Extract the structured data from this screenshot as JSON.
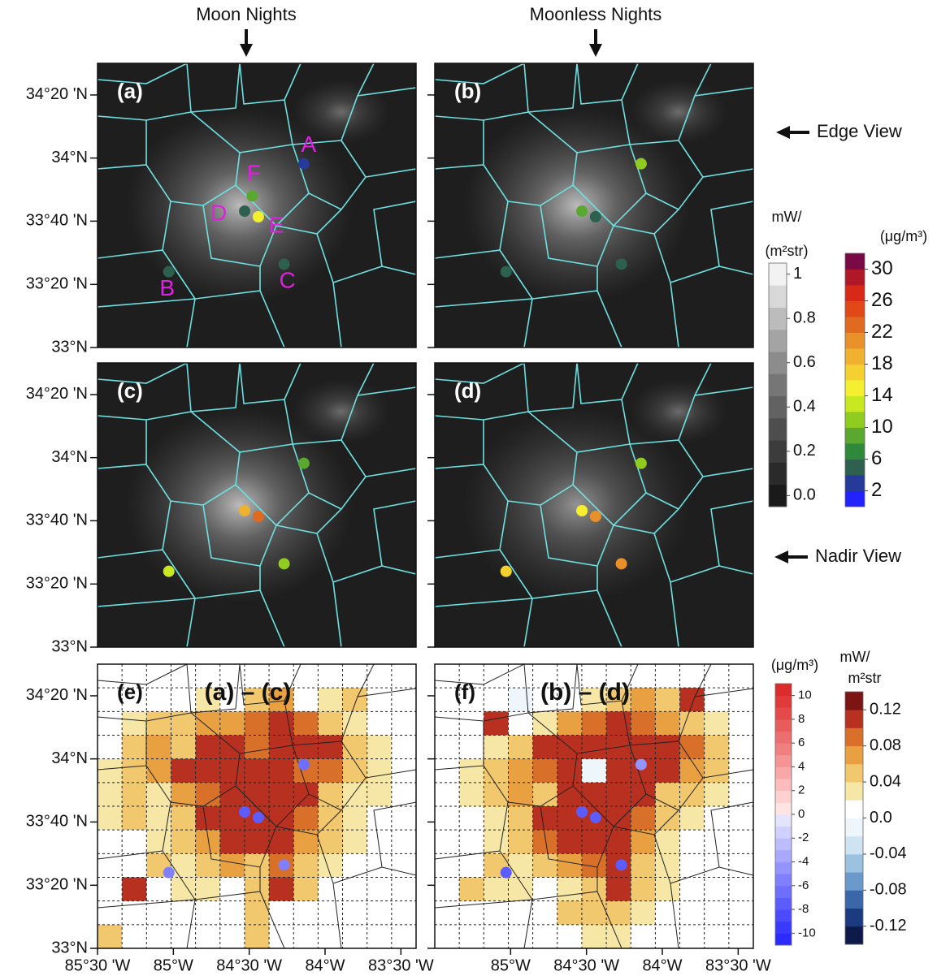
{
  "column_titles": [
    "Moon Nights",
    "Moonless Nights"
  ],
  "view_labels": [
    "Edge View",
    "Nadir View"
  ],
  "xlim": [
    -85.5,
    -83.4
  ],
  "ylim": [
    33,
    34.5
  ],
  "yticks": [
    {
      "value": 33,
      "label": "33°N"
    },
    {
      "value": 33.333,
      "label": "33°20 'N"
    },
    {
      "value": 33.667,
      "label": "33°40 'N"
    },
    {
      "value": 34,
      "label": "34°N"
    },
    {
      "value": 34.333,
      "label": "34°20 'N"
    }
  ],
  "stations": {
    "names": [
      "A",
      "B",
      "C",
      "D",
      "E",
      "F"
    ],
    "lon": [
      -84.14,
      -85.03,
      -84.27,
      -84.53,
      -84.44,
      -84.48
    ],
    "lat": [
      33.97,
      33.4,
      33.44,
      33.72,
      33.69,
      33.8
    ]
  },
  "panels": [
    {
      "label": "(a)",
      "show_names": true,
      "values": [
        3,
        5,
        5,
        5,
        14,
        9
      ]
    },
    {
      "label": "(b)",
      "values": [
        11,
        5,
        5,
        9,
        5,
        null
      ]
    },
    {
      "label": "(c)",
      "values": [
        9,
        12,
        11,
        19,
        22,
        null
      ]
    },
    {
      "label": "(d)",
      "values": [
        11,
        17,
        21,
        15,
        20,
        null
      ]
    },
    {
      "label": "(e)",
      "subtitle": "(a) – (c)",
      "values": [
        -7,
        -6,
        -6,
        -8,
        -8,
        null
      ],
      "xticks": [
        {
          "value": -85.5,
          "label": "85°30 'W"
        },
        {
          "value": -85,
          "label": "85°W"
        },
        {
          "value": -84.5,
          "label": "84°30 'W"
        },
        {
          "value": -84,
          "label": "84°W"
        },
        {
          "value": -83.5,
          "label": "83°30 'W"
        }
      ],
      "cells": [
        [
          0,
          0,
          0,
          0,
          0,
          0,
          0,
          0,
          0,
          0,
          0,
          0,
          0
        ],
        [
          0,
          0,
          0,
          0,
          0.02,
          0,
          0.04,
          0.06,
          0,
          0.02,
          0.04,
          0,
          0
        ],
        [
          0,
          0.02,
          0.04,
          0.04,
          0.06,
          0.06,
          0.08,
          0.12,
          0.08,
          0.04,
          0.02,
          0,
          0
        ],
        [
          0,
          0.04,
          0.06,
          0.04,
          0.12,
          0.1,
          0.08,
          0.12,
          0.1,
          0.12,
          0.04,
          0.02,
          0
        ],
        [
          0.02,
          0.04,
          0.06,
          0.1,
          0.12,
          0.12,
          0.12,
          0.12,
          0.08,
          0.08,
          0.04,
          0.02,
          0
        ],
        [
          0.02,
          0.04,
          0.02,
          0.06,
          0.08,
          0.12,
          0.12,
          0.12,
          0.1,
          0.04,
          0.02,
          0.02,
          0
        ],
        [
          0.02,
          0.04,
          0.02,
          0.04,
          0.1,
          0.12,
          0.12,
          0.12,
          0.08,
          0.04,
          0.02,
          0,
          0
        ],
        [
          0,
          0,
          0.02,
          0.04,
          0.06,
          0.12,
          0.12,
          0.1,
          0.06,
          0.04,
          0.02,
          0,
          0
        ],
        [
          0,
          0,
          0.04,
          0.02,
          0.04,
          0.06,
          0.04,
          0.08,
          0.04,
          0.02,
          0,
          0,
          0
        ],
        [
          0,
          0.1,
          0,
          0.02,
          0.02,
          0,
          0.04,
          0.12,
          0.04,
          0,
          0,
          0,
          0
        ],
        [
          0,
          0,
          0,
          0,
          0,
          0,
          0.04,
          0,
          0,
          0,
          0,
          0,
          0
        ],
        [
          0.04,
          0,
          0,
          0,
          0,
          0,
          0.04,
          0,
          0,
          0,
          0,
          0,
          0
        ]
      ]
    },
    {
      "label": "(f)",
      "subtitle": "(b) – (d)",
      "values": [
        -5,
        -8,
        -8,
        -8,
        -8,
        null
      ],
      "xticks": [
        {
          "value": -85,
          "label": "85°W"
        },
        {
          "value": -84.5,
          "label": "84°30 'W"
        },
        {
          "value": -84,
          "label": "84°W"
        },
        {
          "value": -83.5,
          "label": "83°30 'W"
        }
      ],
      "cells": [
        [
          0,
          0,
          0,
          0,
          0,
          0,
          0,
          0,
          0,
          0,
          0,
          0,
          0
        ],
        [
          0,
          0,
          0,
          -0.02,
          0,
          0,
          0.02,
          0.04,
          0.06,
          0.04,
          0.1,
          0,
          0
        ],
        [
          0,
          0,
          0.1,
          0,
          0.02,
          0.06,
          0.08,
          0.1,
          0.08,
          0.06,
          0.04,
          0.02,
          0
        ],
        [
          0,
          0,
          0.02,
          0.04,
          0.1,
          0.12,
          0.12,
          0.12,
          0.12,
          0.12,
          0.08,
          0.04,
          0
        ],
        [
          0,
          0.02,
          0.04,
          0.06,
          0.08,
          0.12,
          -0.02,
          0.12,
          0.12,
          0.1,
          0.06,
          0.04,
          0
        ],
        [
          0,
          0.02,
          0.04,
          0.06,
          0.04,
          0.12,
          0.12,
          0.12,
          0.1,
          0.04,
          0.04,
          0.02,
          0
        ],
        [
          0,
          0,
          0.02,
          0.04,
          0.1,
          0.12,
          0.12,
          0.12,
          0.08,
          0.04,
          0.02,
          0,
          0
        ],
        [
          0,
          0,
          0.02,
          0.04,
          0.08,
          0.12,
          0.12,
          0.12,
          0.06,
          0.02,
          0,
          0,
          0
        ],
        [
          0,
          0,
          0.04,
          0.02,
          0.04,
          0.06,
          0.08,
          0.1,
          0.04,
          0.02,
          0,
          0,
          0
        ],
        [
          0,
          0.04,
          0.02,
          0.02,
          0,
          0.02,
          0.04,
          0.12,
          0.04,
          0.02,
          0,
          0,
          0
        ],
        [
          0,
          0,
          0,
          0,
          0,
          0.04,
          0.04,
          0.04,
          0.02,
          0,
          0,
          0,
          0
        ],
        [
          0,
          0,
          0,
          0,
          0,
          0,
          0.02,
          0.02,
          0,
          0,
          0,
          0,
          0
        ]
      ]
    }
  ],
  "colorbars": {
    "radiance": {
      "title": [
        "mW/",
        "(m²str)"
      ],
      "lim": [
        -0.05,
        1.05
      ],
      "colors": [
        "#1a1a1a",
        "#2a2a2a",
        "#3c3c3c",
        "#4e4e4e",
        "#626262",
        "#767676",
        "#8c8c8c",
        "#a4a4a4",
        "#bcbcbc",
        "#d8d8d8",
        "#f2f2f2"
      ],
      "ticks": [
        {
          "value": 0,
          "label": "0.0"
        },
        0.2,
        0.4,
        0.6,
        0.8,
        1
      ]
    },
    "pm25": {
      "title": [
        "(μg/m³)"
      ],
      "lim": [
        0,
        32
      ],
      "colors": [
        "#2222ff",
        "#263a9a",
        "#2e6050",
        "#2e8a3a",
        "#5aa830",
        "#90cc20",
        "#c8e820",
        "#f4f030",
        "#f4d030",
        "#f0b030",
        "#e8902a",
        "#e06a20",
        "#e04818",
        "#d82818",
        "#b01828",
        "#7a0a45"
      ],
      "ticks": [
        2,
        6,
        10,
        14,
        18,
        22,
        26,
        30
      ]
    },
    "pm25_diff": {
      "title": [
        "(μg/m³)"
      ],
      "lim": [
        -11,
        11
      ],
      "colors": [
        "#2b2bff",
        "#3a3aff",
        "#4a4aff",
        "#5c5cff",
        "#6e6eff",
        "#8080ff",
        "#9494ff",
        "#a8a8ff",
        "#bcbcff",
        "#d0d0ff",
        "#e4e4ff",
        "#ffe4e4",
        "#ffd0d0",
        "#ffbcbc",
        "#f8a8a8",
        "#f49494",
        "#f08080",
        "#ec6e6e",
        "#e85c5c",
        "#e44a4a",
        "#e03a3a",
        "#dc2b2b"
      ],
      "ticks": [
        10,
        8,
        6,
        4,
        2,
        0,
        -2,
        -4,
        -6,
        -8,
        -10
      ]
    },
    "radiance_diff": {
      "title": [
        "mW/",
        "m²str"
      ],
      "lim": [
        -0.14,
        0.14
      ],
      "colors": [
        "#0d1a4a",
        "#1c3a80",
        "#3a66aa",
        "#6a9acc",
        "#9cc2e2",
        "#cfe4f2",
        "#eef6fb",
        "#ffffff",
        "#f7e7a6",
        "#f1c86e",
        "#e8a040",
        "#d8702a",
        "#b83020",
        "#7d1414"
      ],
      "ticks": [
        0.12,
        0.08,
        0.04,
        {
          "value": 0,
          "label": "0.0"
        },
        -0.04,
        -0.08,
        -0.12
      ]
    }
  }
}
